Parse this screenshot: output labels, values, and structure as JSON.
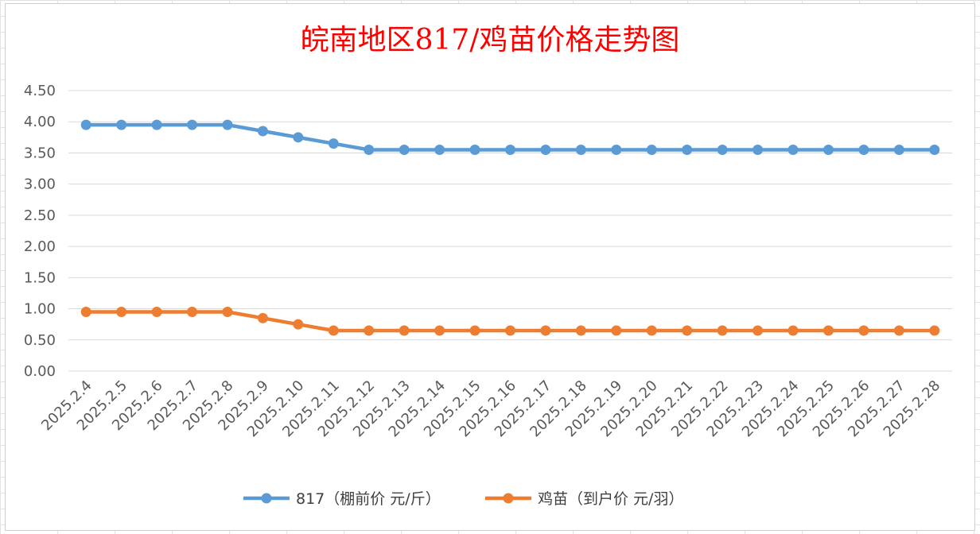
{
  "chart_data": {
    "type": "line",
    "title": "皖南地区817/鸡苗价格走势图",
    "categories": [
      "2025.2.4",
      "2025.2.5",
      "2025.2.6",
      "2025.2.7",
      "2025.2.8",
      "2025.2.9",
      "2025.2.10",
      "2025.2.11",
      "2025.2.12",
      "2025.2.13",
      "2025.2.14",
      "2025.2.15",
      "2025.2.16",
      "2025.2.17",
      "2025.2.18",
      "2025.2.19",
      "2025.2.20",
      "2025.2.21",
      "2025.2.22",
      "2025.2.23",
      "2025.2.24",
      "2025.2.25",
      "2025.2.26",
      "2025.2.27",
      "2025.2.28"
    ],
    "y_ticks": [
      "0.00",
      "0.50",
      "1.00",
      "1.50",
      "2.00",
      "2.50",
      "3.00",
      "3.50",
      "4.00",
      "4.50"
    ],
    "ylim": [
      0,
      4.5
    ],
    "grid": true,
    "legend_position": "bottom",
    "series": [
      {
        "name": "817（棚前价 元/斤）",
        "color": "#5b9bd5",
        "values": [
          3.95,
          3.95,
          3.95,
          3.95,
          3.95,
          3.85,
          3.75,
          3.65,
          3.55,
          3.55,
          3.55,
          3.55,
          3.55,
          3.55,
          3.55,
          3.55,
          3.55,
          3.55,
          3.55,
          3.55,
          3.55,
          3.55,
          3.55,
          3.55,
          3.55
        ]
      },
      {
        "name": "鸡苗（到户价 元/羽）",
        "color": "#ed7d31",
        "values": [
          0.95,
          0.95,
          0.95,
          0.95,
          0.95,
          0.85,
          0.75,
          0.65,
          0.65,
          0.65,
          0.65,
          0.65,
          0.65,
          0.65,
          0.65,
          0.65,
          0.65,
          0.65,
          0.65,
          0.65,
          0.65,
          0.65,
          0.65,
          0.65,
          0.65
        ]
      }
    ]
  }
}
